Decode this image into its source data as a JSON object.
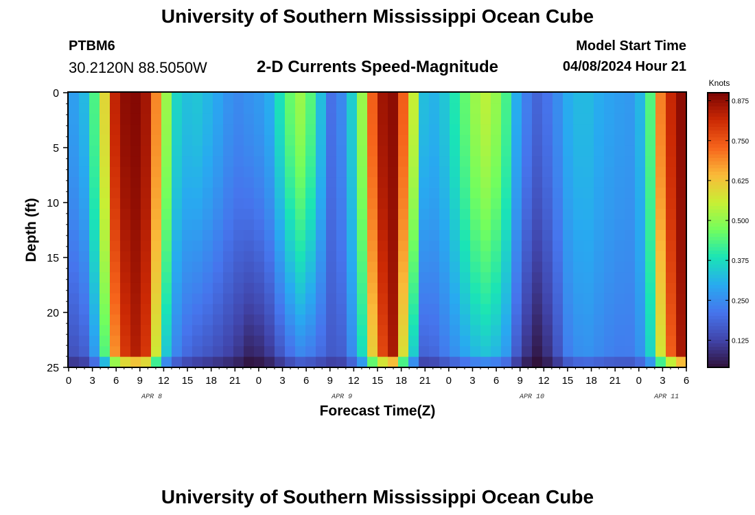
{
  "header": {
    "title": "University of Southern Mississippi Ocean Cube",
    "station": "PTBM6",
    "coords": "30.2120N  88.5050W",
    "plot_title": "2-D Currents Speed-Magnitude",
    "start_label": "Model Start Time",
    "start_value": "04/08/2024 Hour 21"
  },
  "footer": {
    "title": "University of Southern Mississippi Ocean Cube"
  },
  "chart_data": {
    "type": "heatmap",
    "title": "2-D Currents Speed-Magnitude",
    "xlabel": "Forecast Time(Z)",
    "ylabel": "Depth (ft)",
    "x_range_hours": [
      0,
      78
    ],
    "ylim": [
      0,
      25
    ],
    "y_ticks": [
      "0",
      "5",
      "10",
      "15",
      "20",
      "25"
    ],
    "x_tick_labels": [
      "0",
      "3",
      "6",
      "9",
      "12",
      "15",
      "18",
      "21",
      "0",
      "3",
      "6",
      "9",
      "12",
      "15",
      "18",
      "21",
      "0",
      "3",
      "6",
      "9",
      "12",
      "15",
      "18",
      "21",
      "0",
      "3",
      "6"
    ],
    "date_labels": [
      {
        "text": "APR 8",
        "hour": 10.5
      },
      {
        "text": "APR 9",
        "hour": 34.5
      },
      {
        "text": "APR 10",
        "hour": 58.5
      },
      {
        "text": "APR 11",
        "hour": 75.5
      }
    ],
    "colorbar": {
      "label": "Knots",
      "vmin": 0.04,
      "vmax": 0.9,
      "ticks": [
        "0.875",
        "0.750",
        "0.625",
        "0.500",
        "0.375",
        "0.250",
        "0.125"
      ],
      "tick_values": [
        0.875,
        0.75,
        0.625,
        0.5,
        0.375,
        0.25,
        0.125
      ]
    },
    "speed_profile": [
      {
        "hour": 0,
        "surface": 0.26,
        "bottom": 0.13
      },
      {
        "hour": 2,
        "surface": 0.32,
        "bottom": 0.16
      },
      {
        "hour": 4,
        "surface": 0.5,
        "bottom": 0.32
      },
      {
        "hour": 6,
        "surface": 0.85,
        "bottom": 0.7
      },
      {
        "hour": 8,
        "surface": 0.9,
        "bottom": 0.85
      },
      {
        "hour": 10,
        "surface": 0.85,
        "bottom": 0.78
      },
      {
        "hour": 12,
        "surface": 0.55,
        "bottom": 0.35
      },
      {
        "hour": 14,
        "surface": 0.32,
        "bottom": 0.2
      },
      {
        "hour": 16,
        "surface": 0.34,
        "bottom": 0.16
      },
      {
        "hour": 18,
        "surface": 0.31,
        "bottom": 0.14
      },
      {
        "hour": 21,
        "surface": 0.24,
        "bottom": 0.1
      },
      {
        "hour": 23,
        "surface": 0.26,
        "bottom": 0.05
      },
      {
        "hour": 25,
        "surface": 0.28,
        "bottom": 0.08
      },
      {
        "hour": 27,
        "surface": 0.4,
        "bottom": 0.15
      },
      {
        "hour": 29,
        "surface": 0.52,
        "bottom": 0.22
      },
      {
        "hour": 31,
        "surface": 0.42,
        "bottom": 0.2
      },
      {
        "hour": 33,
        "surface": 0.2,
        "bottom": 0.16
      },
      {
        "hour": 35,
        "surface": 0.26,
        "bottom": 0.17
      },
      {
        "hour": 37,
        "surface": 0.5,
        "bottom": 0.35
      },
      {
        "hour": 39,
        "surface": 0.85,
        "bottom": 0.72
      },
      {
        "hour": 41,
        "surface": 0.88,
        "bottom": 0.85
      },
      {
        "hour": 43,
        "surface": 0.65,
        "bottom": 0.4
      },
      {
        "hour": 45,
        "surface": 0.3,
        "bottom": 0.15
      },
      {
        "hour": 47,
        "surface": 0.32,
        "bottom": 0.2
      },
      {
        "hour": 49,
        "surface": 0.4,
        "bottom": 0.25
      },
      {
        "hour": 51,
        "surface": 0.5,
        "bottom": 0.3
      },
      {
        "hour": 53,
        "surface": 0.55,
        "bottom": 0.32
      },
      {
        "hour": 55,
        "surface": 0.45,
        "bottom": 0.28
      },
      {
        "hour": 57,
        "surface": 0.26,
        "bottom": 0.12
      },
      {
        "hour": 59,
        "surface": 0.18,
        "bottom": 0.04
      },
      {
        "hour": 61,
        "surface": 0.22,
        "bottom": 0.1
      },
      {
        "hour": 63,
        "surface": 0.3,
        "bottom": 0.22
      },
      {
        "hour": 65,
        "surface": 0.33,
        "bottom": 0.26
      },
      {
        "hour": 67,
        "surface": 0.3,
        "bottom": 0.24
      },
      {
        "hour": 69,
        "surface": 0.28,
        "bottom": 0.22
      },
      {
        "hour": 71,
        "surface": 0.27,
        "bottom": 0.22
      },
      {
        "hour": 73,
        "surface": 0.35,
        "bottom": 0.28
      },
      {
        "hour": 75,
        "surface": 0.75,
        "bottom": 0.6
      },
      {
        "hour": 77,
        "surface": 0.88,
        "bottom": 0.85
      },
      {
        "hour": 78,
        "surface": 0.88,
        "bottom": 0.85
      }
    ]
  }
}
